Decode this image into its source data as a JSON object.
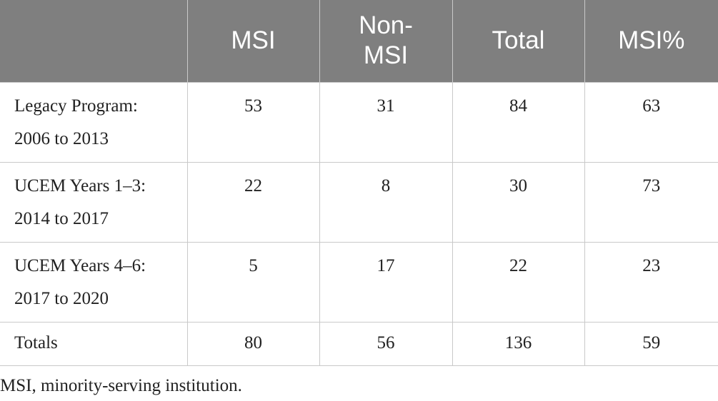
{
  "table": {
    "header": [
      "",
      "MSI",
      "Non-\nMSI",
      "Total",
      "MSI%"
    ],
    "rows": [
      [
        "Legacy Program:\n2006 to 2013",
        53,
        31,
        84,
        63
      ],
      [
        "UCEM Years 1–3:\n2014 to 2017",
        22,
        8,
        30,
        73
      ],
      [
        "UCEM Years 4–6:\n2017 to 2020",
        5,
        17,
        22,
        23
      ],
      [
        "Totals",
        80,
        56,
        136,
        59
      ]
    ],
    "footnote": "MSI, minority-serving institution."
  }
}
